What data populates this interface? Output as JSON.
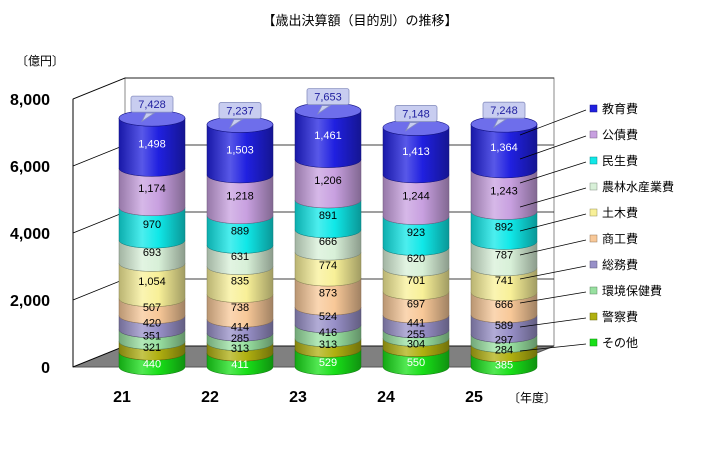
{
  "chart_data": {
    "type": "bar",
    "stacked": true,
    "style": "3d-cylinder",
    "title": "【歳出決算額（目的別）の推移】",
    "ylabel": "〔億円〕",
    "xlabel": "〔年度〕",
    "categories": [
      "21",
      "22",
      "23",
      "24",
      "25"
    ],
    "ylim": [
      0,
      8000
    ],
    "yticks": [
      "0",
      "2,000",
      "4,000",
      "6,000",
      "8,000"
    ],
    "totals": [
      "7,428",
      "7,237",
      "7,653",
      "7,148",
      "7,248"
    ],
    "total_values": [
      7428,
      7237,
      7653,
      7148,
      7248
    ],
    "grid": true,
    "legend_position": "right",
    "series": [
      {
        "name": "その他",
        "color": "#18e018",
        "values": [
          440,
          411,
          529,
          550,
          385
        ],
        "labels": [
          "440",
          "411",
          "529",
          "550",
          "385"
        ]
      },
      {
        "name": "警察費",
        "color": "#b0b010",
        "values": [
          321,
          313,
          313,
          304,
          284
        ],
        "labels": [
          "321",
          "313",
          "313",
          "304",
          "284"
        ]
      },
      {
        "name": "環境保健費",
        "color": "#98e0a0",
        "values": [
          351,
          285,
          416,
          255,
          297
        ],
        "labels": [
          "351",
          "285",
          "416",
          "255",
          "297"
        ]
      },
      {
        "name": "総務費",
        "color": "#9890c8",
        "values": [
          420,
          414,
          524,
          441,
          589
        ],
        "labels": [
          "420",
          "414",
          "524",
          "441",
          "589"
        ]
      },
      {
        "name": "商工費",
        "color": "#f8c898",
        "values": [
          507,
          738,
          873,
          697,
          666
        ],
        "labels": [
          "507",
          "738",
          "873",
          "697",
          "666"
        ]
      },
      {
        "name": "土木費",
        "color": "#f8f098",
        "values": [
          1054,
          835,
          774,
          701,
          741
        ],
        "labels": [
          "1,054",
          "835",
          "774",
          "701",
          "741"
        ]
      },
      {
        "name": "農林水産業費",
        "color": "#d8f0d8",
        "values": [
          693,
          631,
          666,
          620,
          787
        ],
        "labels": [
          "693",
          "631",
          "666",
          "620",
          "787"
        ]
      },
      {
        "name": "民生費",
        "color": "#10e8e8",
        "values": [
          970,
          889,
          891,
          923,
          892
        ],
        "labels": [
          "970",
          "889",
          "891",
          "923",
          "892"
        ]
      },
      {
        "name": "公債費",
        "color": "#c8a0e0",
        "values": [
          1174,
          1218,
          1206,
          1244,
          1243
        ],
        "labels": [
          "1,174",
          "1,218",
          "1,206",
          "1,244",
          "1,243"
        ]
      },
      {
        "name": "教育費",
        "color": "#2020e0",
        "values": [
          1498,
          1503,
          1461,
          1413,
          1364
        ],
        "labels": [
          "1,498",
          "1,503",
          "1,461",
          "1,413",
          "1,364"
        ]
      }
    ],
    "legend_order": [
      "教育費",
      "公債費",
      "民生費",
      "農林水産業費",
      "土木費",
      "商工費",
      "総務費",
      "環境保健費",
      "警察費",
      "その他"
    ]
  }
}
